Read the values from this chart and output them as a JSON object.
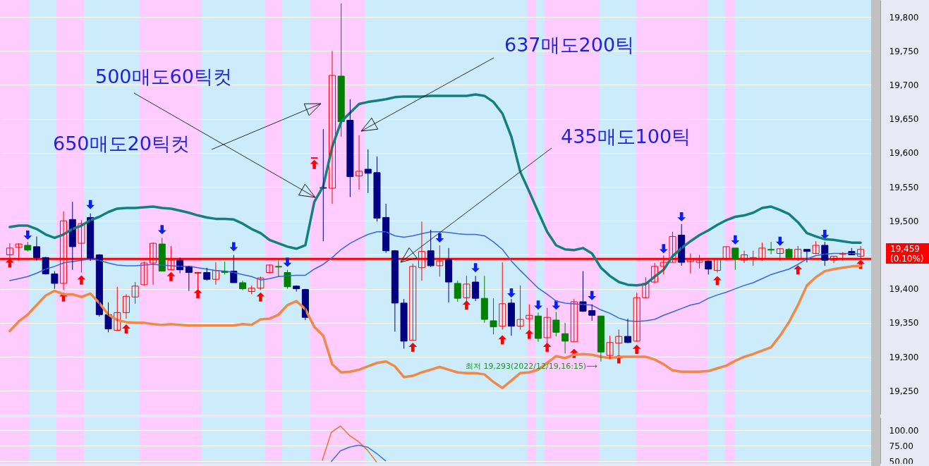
{
  "chart_data": [
    {
      "type": "candlestick",
      "categories": [
        null,
        null,
        null,
        null,
        null,
        null,
        null,
        null,
        null,
        null,
        null,
        null,
        null,
        null,
        null,
        null,
        null,
        null,
        null,
        null,
        null,
        null,
        null,
        null,
        null,
        null,
        null,
        null,
        null,
        null,
        null,
        null,
        null,
        null,
        null,
        null,
        null,
        null,
        null,
        null,
        null,
        null,
        null,
        null,
        null,
        null,
        null,
        null,
        null,
        null,
        null,
        null,
        null,
        null,
        null,
        null,
        null,
        null,
        null,
        null,
        null,
        null,
        null,
        null,
        null,
        null,
        null,
        null,
        null,
        null,
        null,
        null,
        null,
        null,
        null,
        null,
        null,
        null,
        null,
        null,
        null,
        null,
        null,
        null,
        null,
        null,
        null,
        null,
        null,
        null,
        null,
        null,
        null,
        null,
        null,
        null
      ],
      "ohlc": [
        [
          19450,
          19467,
          19443,
          19460
        ],
        [
          19461,
          19467,
          19441,
          19466
        ],
        [
          19464,
          19469,
          19455,
          19457
        ],
        [
          19462,
          19477,
          19441,
          19446
        ],
        [
          19446,
          19447,
          19421,
          19422
        ],
        [
          19422,
          19426,
          19400,
          19408
        ],
        [
          19408,
          19514,
          19398,
          19500
        ],
        [
          19502,
          19528,
          19428,
          19462
        ],
        [
          19467,
          19501,
          19424,
          19496
        ],
        [
          19505,
          19511,
          19441,
          19444
        ],
        [
          19450,
          19451,
          19359,
          19362
        ],
        [
          19362,
          19380,
          19336,
          19341
        ],
        [
          19339,
          19403,
          19338,
          19365
        ],
        [
          19365,
          19392,
          19356,
          19389
        ],
        [
          19388,
          19410,
          19378,
          19404
        ],
        [
          19406,
          19440,
          19405,
          19438
        ],
        [
          19438,
          19468,
          19406,
          19467
        ],
        [
          19466,
          19475,
          19426,
          19426
        ],
        [
          19428,
          19463,
          19428,
          19442
        ],
        [
          19442,
          19446,
          19423,
          19428
        ],
        [
          19433,
          19434,
          19397,
          19424
        ],
        [
          19423,
          19424,
          19393,
          19424
        ],
        [
          19424,
          19431,
          19412,
          19414
        ],
        [
          19414,
          19439,
          19406,
          19427
        ],
        [
          19426,
          19440,
          19421,
          19424
        ],
        [
          19426,
          19450,
          19409,
          19409
        ],
        [
          19409,
          19412,
          19398,
          19400
        ],
        [
          19396,
          19405,
          19392,
          19401
        ],
        [
          19401,
          19418,
          19398,
          19416
        ],
        [
          19424,
          19436,
          19423,
          19435
        ],
        [
          19433,
          19444,
          19418,
          19432
        ],
        [
          19424,
          19428,
          19400,
          19403
        ],
        [
          19404,
          19405,
          19396,
          19400
        ],
        [
          19399,
          19400,
          19354,
          19358
        ],
        [
          19592,
          19593,
          19592,
          19593
        ],
        [
          19549,
          19635,
          19470,
          19548
        ],
        [
          19548,
          19750,
          19525,
          19714
        ],
        [
          19713,
          19820,
          19624,
          19646
        ],
        [
          19648,
          19679,
          19535,
          19565
        ],
        [
          19566,
          19626,
          19546,
          19573
        ],
        [
          19576,
          19605,
          19541,
          19570
        ],
        [
          19571,
          19595,
          19499,
          19504
        ],
        [
          19505,
          19525,
          19453,
          19456
        ],
        [
          19456,
          19457,
          19337,
          19379
        ],
        [
          19379,
          19385,
          19312,
          19323
        ],
        [
          19324,
          19437,
          19324,
          19433
        ],
        [
          19431,
          19499,
          19412,
          19455
        ],
        [
          19456,
          19487,
          19432,
          19434
        ],
        [
          19434,
          19464,
          19418,
          19441
        ],
        [
          19443,
          19460,
          19380,
          19410
        ],
        [
          19408,
          19412,
          19381,
          19386
        ],
        [
          19387,
          19419,
          19377,
          19407
        ],
        [
          19410,
          19419,
          19382,
          19386
        ],
        [
          19386,
          19419,
          19350,
          19355
        ],
        [
          19353,
          19386,
          19333,
          19344
        ],
        [
          19345,
          19439,
          19340,
          19378
        ],
        [
          19379,
          19385,
          19331,
          19345
        ],
        [
          19345,
          19405,
          19340,
          19355
        ],
        [
          19356,
          19377,
          19337,
          19361
        ],
        [
          19360,
          19365,
          19322,
          19327
        ],
        [
          19328,
          19372,
          19318,
          19358
        ],
        [
          19354,
          19366,
          19330,
          19336
        ],
        [
          19334,
          19350,
          19305,
          19323
        ],
        [
          19322,
          19385,
          19322,
          19381
        ],
        [
          19381,
          19426,
          19366,
          19367
        ],
        [
          19368,
          19377,
          19353,
          19361
        ],
        [
          19360,
          19360,
          19293,
          19307
        ],
        [
          19302,
          19331,
          19297,
          19321
        ],
        [
          19320,
          19340,
          19304,
          19330
        ],
        [
          19330,
          19356,
          19320,
          19321
        ],
        [
          19323,
          19394,
          19322,
          19387
        ],
        [
          19387,
          19417,
          19386,
          19408
        ],
        [
          19410,
          19438,
          19408,
          19433
        ],
        [
          19433,
          19449,
          19421,
          19439
        ],
        [
          19439,
          19484,
          19439,
          19477
        ],
        [
          19479,
          19495,
          19434,
          19439
        ],
        [
          19440,
          19452,
          19423,
          19444
        ],
        [
          19439,
          19450,
          19430,
          19442
        ],
        [
          19441,
          19442,
          19421,
          19429
        ],
        [
          19427,
          19445,
          19424,
          19444
        ],
        [
          19444,
          19462,
          19442,
          19462
        ],
        [
          19460,
          19460,
          19428,
          19444
        ],
        [
          19442,
          19456,
          19438,
          19450
        ],
        [
          19444,
          19456,
          19434,
          19446
        ],
        [
          19444,
          19468,
          19441,
          19460
        ],
        [
          19458,
          19469,
          19451,
          19457
        ],
        [
          19452,
          19459,
          19441,
          19459
        ],
        [
          19458,
          19460,
          19446,
          19446
        ],
        [
          19444,
          19463,
          19441,
          19458
        ],
        [
          19458,
          19458,
          19439,
          19455
        ],
        [
          19452,
          19470,
          19451,
          19464
        ],
        [
          19464,
          19469,
          19434,
          19442
        ],
        [
          19442,
          19448,
          19438,
          19448
        ],
        [
          19451,
          19454,
          19441,
          19452
        ],
        [
          19455,
          19460,
          19450,
          19450
        ],
        [
          19448,
          19463,
          19445,
          19458
        ]
      ],
      "colors": [
        "#ff0000",
        "#ff0000",
        "#008000",
        "#000080",
        "#000080",
        "#000080",
        "#ff0000",
        "#000080",
        "#ff0000",
        "#000080",
        "#000080",
        "#000080",
        "#ff0000",
        "#ff0000",
        "#ff0000",
        "#ff0000",
        "#ff0000",
        "#008000",
        "#ff0000",
        "#000080",
        "#000080",
        "#ff0000",
        "#000080",
        "#ff0000",
        "#008000",
        "#000080",
        "#008000",
        "#ff0000",
        "#ff0000",
        "#ff0000",
        "#008000",
        "#008000",
        "#000080",
        "#000080",
        "#ff0000",
        "#000080",
        "#ff0000",
        "#008000",
        "#000080",
        "#ff0000",
        "#000080",
        "#000080",
        "#000080",
        "#000080",
        "#000080",
        "#ff0000",
        "#ff0000",
        "#000080",
        "#ff0000",
        "#000080",
        "#008000",
        "#ff0000",
        "#000080",
        "#008000",
        "#008000",
        "#ff0000",
        "#000080",
        "#ff0000",
        "#ff0000",
        "#008000",
        "#ff0000",
        "#008000",
        "#008000",
        "#ff0000",
        "#000080",
        "#000080",
        "#008000",
        "#ff0000",
        "#ff0000",
        "#000080",
        "#ff0000",
        "#ff0000",
        "#ff0000",
        "#ff0000",
        "#ff0000",
        "#000080",
        "#ff0000",
        "#ff0000",
        "#000080",
        "#ff0000",
        "#ff0000",
        "#008000",
        "#ff0000",
        "#ff0000",
        "#ff0000",
        "#008000",
        "#ff0000",
        "#008000",
        "#ff0000",
        "#000080",
        "#ff0000",
        "#000080",
        "#ff0000",
        "#ff0000",
        "#000080",
        "#ff0000"
      ],
      "series": [
        {
          "type": "line",
          "color": "#13807e",
          "values": [
            19491,
            19493,
            19493,
            19488,
            19480,
            19475,
            19480,
            19488,
            19493,
            19501,
            19506,
            19513,
            19518,
            19519,
            19519,
            19520,
            19521,
            19519,
            19518,
            19515,
            19512,
            19508,
            19505,
            19503,
            19503,
            19502,
            19496,
            19488,
            19482,
            19472,
            19467,
            19462,
            19459,
            19464,
            19528,
            19551,
            19609,
            19646,
            19659,
            19672,
            19675,
            19677,
            19679,
            19682,
            19683,
            19683,
            19683,
            19684,
            19684,
            19684,
            19684,
            19684,
            19686,
            19684,
            19675,
            19658,
            19624,
            19572,
            19543,
            19513,
            19484,
            19464,
            19458,
            19457,
            19460,
            19452,
            19431,
            19419,
            19410,
            19406,
            19405,
            19407,
            19418,
            19428,
            19448,
            19460,
            19470,
            19479,
            19486,
            19494,
            19501,
            19506,
            19508,
            19512,
            19519,
            19521,
            19516,
            19510,
            19498,
            19482,
            19477,
            19473,
            19472,
            19470,
            19468,
            19468
          ]
        },
        {
          "type": "line",
          "color": "#3a64e0",
          "values": [
            19412,
            19415,
            19418,
            19423,
            19429,
            19433,
            19438,
            19440,
            19442,
            19444,
            19442,
            19438,
            19435,
            19434,
            19434,
            19435,
            19436,
            19435,
            19434,
            19433,
            19433,
            19431,
            19429,
            19427,
            19426,
            19424,
            19421,
            19418,
            19413,
            19415,
            19418,
            19419,
            19420,
            19420,
            19429,
            19436,
            19446,
            19458,
            19467,
            19474,
            19480,
            19484,
            19484,
            19478,
            19476,
            19478,
            19481,
            19484,
            19484,
            19483,
            19481,
            19480,
            19480,
            19478,
            19469,
            19458,
            19441,
            19427,
            19414,
            19401,
            19392,
            19382,
            19379,
            19378,
            19377,
            19376,
            19369,
            19364,
            19357,
            19353,
            19352,
            19353,
            19355,
            19361,
            19366,
            19371,
            19376,
            19379,
            19386,
            19391,
            19395,
            19400,
            19405,
            19409,
            19415,
            19421,
            19425,
            19429,
            19436,
            19444,
            19449,
            19451,
            19452,
            19452,
            19452,
            19451
          ]
        },
        {
          "type": "line",
          "color": "#f08848",
          "values": [
            19338,
            19352,
            19362,
            19376,
            19390,
            19397,
            19392,
            19392,
            19388,
            19393,
            19379,
            19362,
            19354,
            19351,
            19350,
            19350,
            19348,
            19347,
            19348,
            19347,
            19346,
            19346,
            19346,
            19346,
            19346,
            19346,
            19348,
            19347,
            19355,
            19356,
            19362,
            19376,
            19382,
            19370,
            19344,
            19331,
            19289,
            19277,
            19278,
            19281,
            19286,
            19291,
            19293,
            19286,
            19270,
            19272,
            19277,
            19281,
            19285,
            19281,
            19277,
            19276,
            19276,
            19274,
            19263,
            19254,
            19265,
            19276,
            19277,
            19281,
            19291,
            19301,
            19298,
            19303,
            19304,
            19303,
            19300,
            19298,
            19300,
            19300,
            19300,
            19300,
            19296,
            19289,
            19280,
            19278,
            19278,
            19278,
            19279,
            19283,
            19287,
            19294,
            19300,
            19304,
            19309,
            19314,
            19331,
            19351,
            19376,
            19405,
            19417,
            19426,
            19429,
            19431,
            19433,
            19434
          ]
        },
        {
          "type": "scatter",
          "marker": "triangle",
          "color": "#ff0000",
          "values": [
            19438,
            null,
            null,
            null,
            null,
            null,
            19388,
            null,
            19413,
            null,
            null,
            null,
            null,
            19341,
            null,
            null,
            null,
            null,
            19418,
            null,
            null,
            19393,
            null,
            null,
            null,
            null,
            null,
            null,
            19388,
            null,
            null,
            null,
            null,
            null,
            19583,
            null,
            null,
            null,
            null,
            null,
            null,
            null,
            null,
            null,
            null,
            19314,
            null,
            null,
            null,
            null,
            null,
            19376,
            null,
            null,
            null,
            19325,
            null,
            null,
            19333,
            null,
            19314,
            null,
            null,
            19305,
            null,
            null,
            null,
            null,
            19297,
            null,
            19311,
            null,
            null,
            null,
            null,
            null,
            null,
            null,
            null,
            19412,
            null,
            null,
            null,
            null,
            null,
            null,
            null,
            null,
            19428,
            null,
            null,
            null,
            null,
            null,
            null,
            19436
          ]
        },
        {
          "type": "scatter",
          "marker": "triangle",
          "color": "#0a1ef0",
          "values": [
            null,
            null,
            19479,
            null,
            null,
            null,
            null,
            null,
            null,
            19524,
            null,
            null,
            null,
            null,
            null,
            null,
            null,
            19487,
            null,
            null,
            null,
            null,
            null,
            null,
            null,
            19462,
            null,
            null,
            null,
            null,
            null,
            19439,
            null,
            null,
            null,
            null,
            null,
            null,
            null,
            null,
            null,
            null,
            null,
            null,
            null,
            null,
            null,
            null,
            19475,
            null,
            null,
            null,
            19431,
            null,
            null,
            null,
            19394,
            null,
            null,
            19376,
            null,
            19376,
            null,
            null,
            null,
            19390,
            null,
            null,
            null,
            null,
            null,
            null,
            null,
            19459,
            null,
            19506,
            null,
            null,
            null,
            null,
            null,
            19472,
            null,
            null,
            null,
            null,
            19470,
            null,
            null,
            null,
            null,
            19480,
            null,
            null,
            null,
            null
          ]
        }
      ],
      "ylim": [
        19215,
        19825
      ],
      "yticks": [
        {
          "value": 19250,
          "label": "19,250"
        },
        {
          "value": 19300,
          "label": "19,300"
        },
        {
          "value": 19350,
          "label": "19,350"
        },
        {
          "value": 19400,
          "label": "19,400"
        },
        {
          "value": 19450,
          "label": null
        },
        {
          "value": 19500,
          "label": "19,500"
        },
        {
          "value": 19550,
          "label": "19,550"
        },
        {
          "value": 19600,
          "label": "19,600"
        },
        {
          "value": 19650,
          "label": "19,650"
        },
        {
          "value": 19700,
          "label": "19,700"
        },
        {
          "value": 19750,
          "label": "19,750"
        },
        {
          "value": 19800,
          "label": "19,800"
        }
      ],
      "grid": "y",
      "tick_labels": "y",
      "ref_lines": [
        {
          "axis": "y",
          "value": 19444,
          "color": "#ff0000"
        }
      ],
      "annotations": [
        "500매도60틱컷",
        "650매도20틱컷",
        "637매도200틱",
        "435매도100틱",
        "최저 19,293(2022/12/19,16:15)⟶",
        "19,459",
        "(0.10%)"
      ]
    },
    {
      "type": "line",
      "categories": [
        null,
        null,
        null,
        null,
        null,
        null,
        null,
        null,
        null,
        null,
        null,
        null,
        null,
        null,
        null,
        null,
        null,
        null,
        null,
        null,
        null,
        null,
        null,
        null,
        null,
        null,
        null,
        null,
        null,
        null,
        null,
        null,
        null,
        null,
        null,
        null,
        null,
        null,
        null,
        null,
        null,
        null,
        null,
        null,
        null,
        null,
        null,
        null,
        null,
        null,
        null,
        null,
        null,
        null,
        null,
        null,
        null,
        null,
        null,
        null,
        null,
        null,
        null,
        null,
        null,
        null,
        null,
        null,
        null,
        null,
        null,
        null,
        null,
        null,
        null,
        null,
        null,
        null,
        null,
        null,
        null,
        null,
        null,
        null,
        null,
        null,
        null,
        null,
        null,
        null,
        null,
        null,
        null,
        null,
        null,
        null
      ],
      "series": [
        {
          "color": "#f07030",
          "values": [
            null,
            null,
            null,
            null,
            null,
            null,
            null,
            null,
            null,
            null,
            null,
            null,
            null,
            null,
            null,
            null,
            null,
            null,
            null,
            null,
            null,
            null,
            null,
            null,
            null,
            null,
            null,
            null,
            null,
            null,
            null,
            null,
            null,
            null,
            null,
            52,
            97,
            107,
            92,
            82,
            68,
            49,
            null,
            null,
            null,
            null,
            null,
            null,
            null,
            null,
            null,
            null,
            null,
            null,
            null,
            null,
            null,
            null,
            null,
            null,
            null,
            null,
            null,
            null,
            null,
            null,
            null,
            null,
            null,
            null,
            null,
            null,
            null,
            null,
            null,
            null,
            null,
            null,
            null,
            null,
            null,
            null,
            null,
            null,
            null,
            null,
            null,
            null,
            null,
            null,
            null,
            null,
            null,
            null,
            null,
            null
          ]
        },
        {
          "color": "#3f6fe0",
          "values": [
            null,
            null,
            null,
            null,
            null,
            null,
            null,
            null,
            null,
            null,
            null,
            null,
            null,
            null,
            null,
            null,
            null,
            null,
            null,
            null,
            null,
            null,
            null,
            null,
            null,
            null,
            null,
            null,
            null,
            null,
            null,
            null,
            null,
            null,
            null,
            null,
            50,
            67,
            73,
            76,
            73,
            63,
            51,
            null,
            null,
            null,
            null,
            null,
            null,
            null,
            null,
            null,
            null,
            null,
            null,
            null,
            null,
            null,
            null,
            null,
            null,
            null,
            null,
            null,
            null,
            null,
            null,
            null,
            null,
            null,
            null,
            null,
            null,
            null,
            null,
            null,
            null,
            null,
            null,
            null,
            null,
            null,
            null,
            null,
            null,
            null,
            null,
            null,
            null,
            null,
            null,
            null,
            null,
            null,
            null,
            null
          ]
        }
      ],
      "ylim": [
        46,
        121
      ],
      "yticks": [
        {
          "value": 50,
          "label": "50.00"
        },
        {
          "value": 75,
          "label": "75.00"
        },
        {
          "value": 100,
          "label": "100.00"
        }
      ],
      "grid": "y",
      "tick_labels": "y",
      "line_style": "solid"
    }
  ]
}
